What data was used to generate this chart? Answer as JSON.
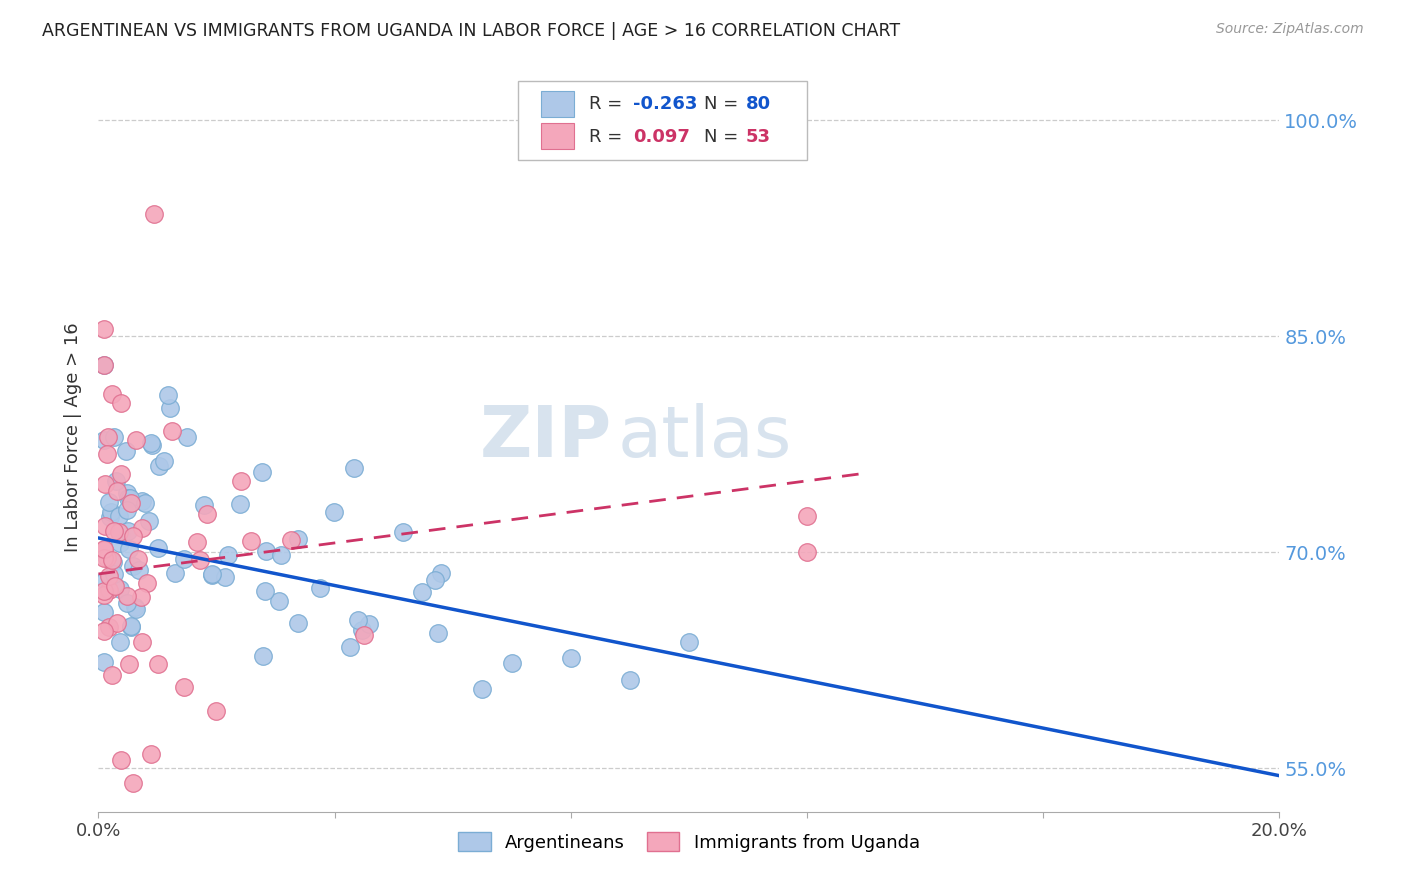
{
  "title": "ARGENTINEAN VS IMMIGRANTS FROM UGANDA IN LABOR FORCE | AGE > 16 CORRELATION CHART",
  "source": "Source: ZipAtlas.com",
  "ylabel": "In Labor Force | Age > 16",
  "legend_blue_r": "-0.263",
  "legend_blue_n": "80",
  "legend_pink_r": "0.097",
  "legend_pink_n": "53",
  "legend_label_blue": "Argentineans",
  "legend_label_pink": "Immigrants from Uganda",
  "blue_color": "#aec8e8",
  "blue_edge": "#7badd4",
  "pink_color": "#f4a7bb",
  "pink_edge": "#e07090",
  "blue_line_color": "#1155cc",
  "pink_line_color": "#cc3366",
  "watermark_color": "#c8d8e8",
  "grid_color": "#cccccc",
  "right_axis_color": "#5599dd",
  "xmin": 0.0,
  "xmax": 0.2,
  "ymin": 0.52,
  "ymax": 1.04,
  "yticks": [
    0.55,
    0.7,
    0.85,
    1.0
  ],
  "ytick_labels": [
    "55.0%",
    "70.0%",
    "85.0%",
    "100.0%"
  ],
  "xticks": [
    0.0,
    0.04,
    0.08,
    0.12,
    0.16,
    0.2
  ],
  "blue_trend_x": [
    0.0,
    0.2
  ],
  "blue_trend_y": [
    0.71,
    0.545
  ],
  "pink_trend_x": [
    0.0,
    0.13
  ],
  "pink_trend_y": [
    0.685,
    0.755
  ]
}
